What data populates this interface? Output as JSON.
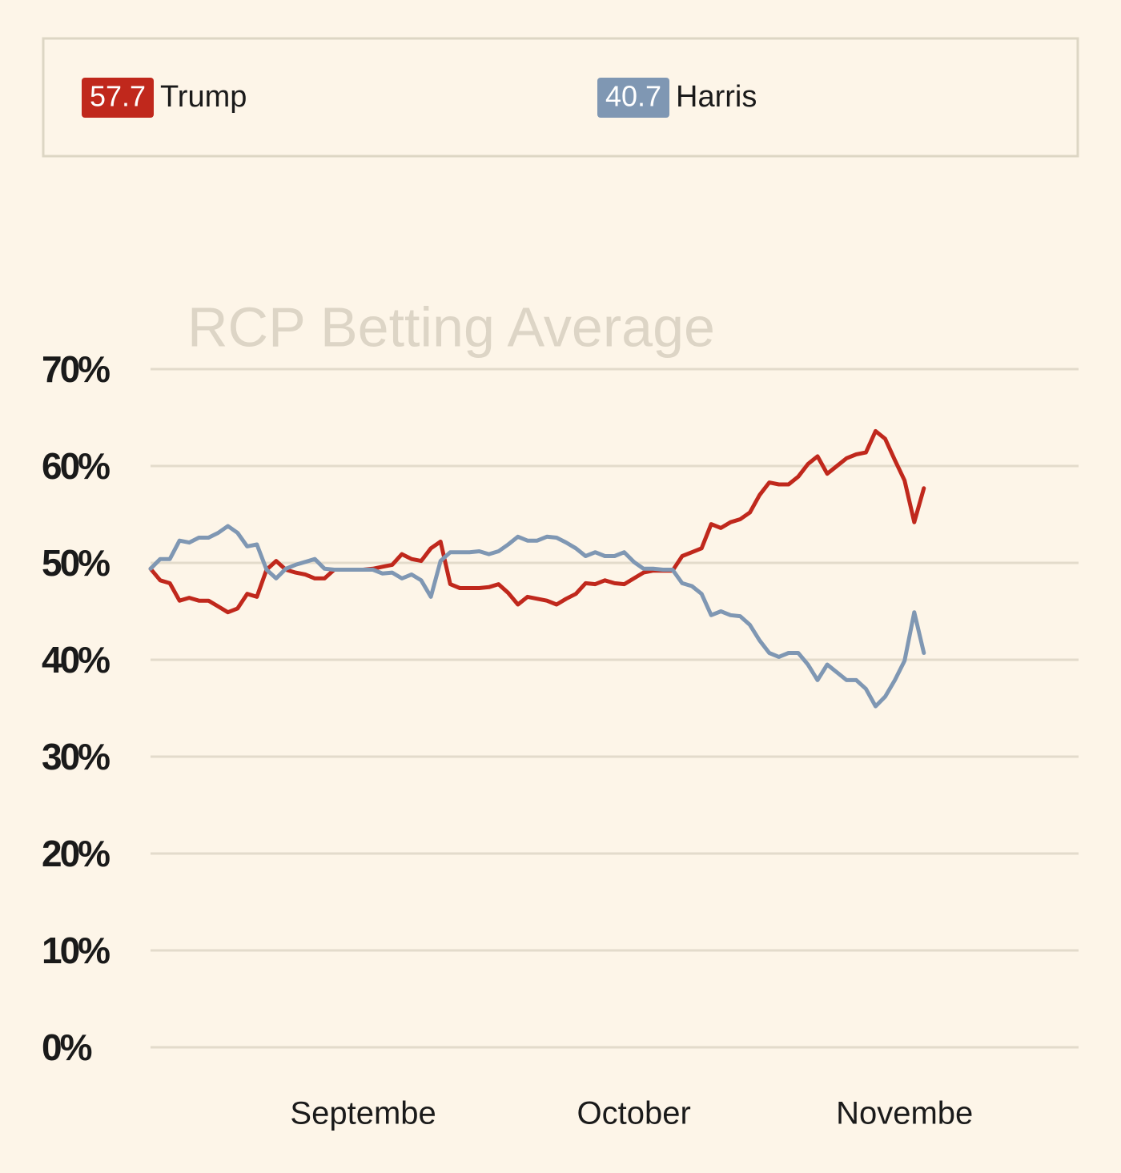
{
  "chart_data": {
    "type": "line",
    "title": "RCP Betting Average",
    "categories": [
      null,
      null,
      null,
      null,
      null,
      null,
      null,
      null,
      null,
      null,
      null,
      null,
      null,
      null,
      null,
      null,
      null,
      null,
      null,
      null,
      null,
      null,
      "Septembe",
      null,
      null,
      null,
      null,
      null,
      null,
      null,
      null,
      null,
      null,
      null,
      null,
      null,
      null,
      null,
      null,
      null,
      null,
      null,
      null,
      null,
      null,
      null,
      null,
      null,
      null,
      null,
      "October",
      null,
      null,
      null,
      null,
      null,
      null,
      null,
      null,
      null,
      null,
      null,
      null,
      null,
      null,
      null,
      null,
      null,
      null,
      null,
      null,
      null,
      null,
      null,
      null,
      null,
      null,
      null,
      "Novembe",
      null,
      null,
      null,
      null,
      null,
      null,
      null,
      null,
      null,
      null,
      null,
      null,
      null,
      null,
      null,
      null,
      null,
      null
    ],
    "series": [
      {
        "name": "Trump",
        "color": "#c0281c",
        "values": [
          49.4,
          48.2,
          47.9,
          46.1,
          46.4,
          46.1,
          46.1,
          45.5,
          44.9,
          45.3,
          46.8,
          46.5,
          49.3,
          50.2,
          49.3,
          49.0,
          48.8,
          48.4,
          48.4,
          49.3,
          49.3,
          49.3,
          49.3,
          49.4,
          49.6,
          49.8,
          50.9,
          50.4,
          50.2,
          51.5,
          52.2,
          47.8,
          47.4,
          47.4,
          47.4,
          47.5,
          47.8,
          46.9,
          45.7,
          46.5,
          46.3,
          46.1,
          45.7,
          46.3,
          46.8,
          47.9,
          47.8,
          48.2,
          47.9,
          47.8,
          48.4,
          49.0,
          49.2,
          49.2,
          49.2,
          50.7,
          51.1,
          51.5,
          54.0,
          53.6,
          54.2,
          54.5,
          55.2,
          57.0,
          58.3,
          58.1,
          58.1,
          58.9,
          60.2,
          61.0,
          59.2,
          60.0,
          60.8,
          61.2,
          61.4,
          63.6,
          62.8,
          60.6,
          58.5,
          54.2,
          57.7,
          null,
          null,
          null,
          null,
          null,
          null,
          null,
          null,
          null,
          null,
          null,
          null,
          null,
          null,
          null,
          null
        ]
      },
      {
        "name": "Harris",
        "color": "#7f97b3",
        "values": [
          49.4,
          50.4,
          50.4,
          52.3,
          52.1,
          52.6,
          52.6,
          53.1,
          53.8,
          53.1,
          51.7,
          51.9,
          49.3,
          48.4,
          49.4,
          49.8,
          50.1,
          50.4,
          49.4,
          49.3,
          49.3,
          49.3,
          49.3,
          49.3,
          48.9,
          49.0,
          48.4,
          48.8,
          48.2,
          46.5,
          50.2,
          51.1,
          51.1,
          51.1,
          51.2,
          50.9,
          51.2,
          51.9,
          52.7,
          52.3,
          52.3,
          52.7,
          52.6,
          52.1,
          51.5,
          50.7,
          51.1,
          50.7,
          50.7,
          51.1,
          50.1,
          49.4,
          49.4,
          49.3,
          49.3,
          47.9,
          47.6,
          46.8,
          44.6,
          45.0,
          44.6,
          44.5,
          43.6,
          42.0,
          40.7,
          40.3,
          40.7,
          40.7,
          39.5,
          37.9,
          39.5,
          38.7,
          37.9,
          37.9,
          37.0,
          35.2,
          36.2,
          37.9,
          39.9,
          44.9,
          40.7,
          null,
          null,
          null,
          null,
          null,
          null,
          null,
          null,
          null,
          null,
          null,
          null,
          null,
          null,
          null,
          null
        ]
      }
    ],
    "ylim": [
      0,
      70
    ],
    "yticks": [
      {
        "value": 0,
        "label": "0%"
      },
      {
        "value": 10,
        "label": "10%"
      },
      {
        "value": 20,
        "label": "20%"
      },
      {
        "value": 30,
        "label": "30%"
      },
      {
        "value": 40,
        "label": "40%"
      },
      {
        "value": 50,
        "label": "50%"
      },
      {
        "value": 60,
        "label": "60%"
      },
      {
        "value": 70,
        "label": "70%"
      }
    ],
    "grid": true
  }
}
